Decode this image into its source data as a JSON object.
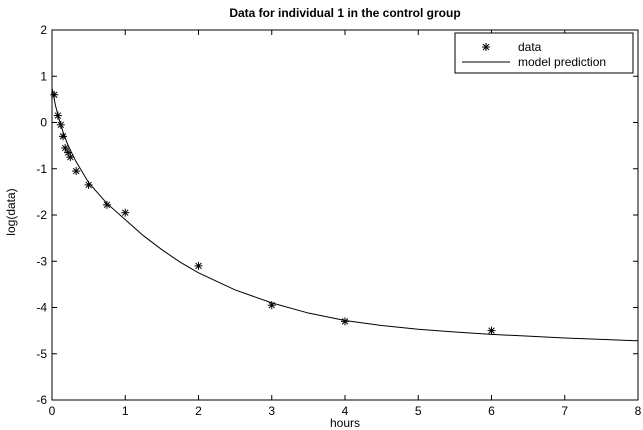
{
  "chart_data": {
    "type": "scatter",
    "title": "Data for individual 1 in the control group",
    "xlabel": "hours",
    "ylabel": "log(data)",
    "xlim": [
      0,
      8
    ],
    "ylim": [
      -6,
      2
    ],
    "xticks": [
      0,
      1,
      2,
      3,
      4,
      5,
      6,
      7,
      8
    ],
    "yticks": [
      2,
      1,
      0,
      -1,
      -2,
      -3,
      -4,
      -5,
      -6
    ],
    "grid": false,
    "legend_position": "top-right",
    "series": [
      {
        "name": "data",
        "marker": "asterisk",
        "x": [
          0.03,
          0.08,
          0.12,
          0.15,
          0.18,
          0.22,
          0.25,
          0.33,
          0.5,
          0.75,
          1.0,
          2.0,
          3.0,
          4.0,
          6.0
        ],
        "y": [
          0.6,
          0.15,
          -0.05,
          -0.3,
          -0.55,
          -0.65,
          -0.75,
          -1.05,
          -1.35,
          -1.78,
          -1.95,
          -3.1,
          -3.95,
          -4.3,
          -4.5
        ]
      },
      {
        "name": "model prediction",
        "style": "line",
        "x": [
          0.0,
          0.05,
          0.1,
          0.15,
          0.2,
          0.25,
          0.33,
          0.5,
          0.75,
          1.0,
          1.25,
          1.5,
          1.75,
          2.0,
          2.5,
          3.0,
          3.5,
          4.0,
          4.5,
          5.0,
          5.5,
          6.0,
          6.5,
          7.0,
          7.5,
          8.0
        ],
        "y": [
          0.75,
          0.35,
          0.05,
          -0.2,
          -0.42,
          -0.6,
          -0.85,
          -1.3,
          -1.75,
          -2.1,
          -2.45,
          -2.75,
          -3.02,
          -3.25,
          -3.62,
          -3.9,
          -4.12,
          -4.28,
          -4.39,
          -4.47,
          -4.53,
          -4.58,
          -4.62,
          -4.66,
          -4.69,
          -4.72
        ]
      }
    ]
  }
}
